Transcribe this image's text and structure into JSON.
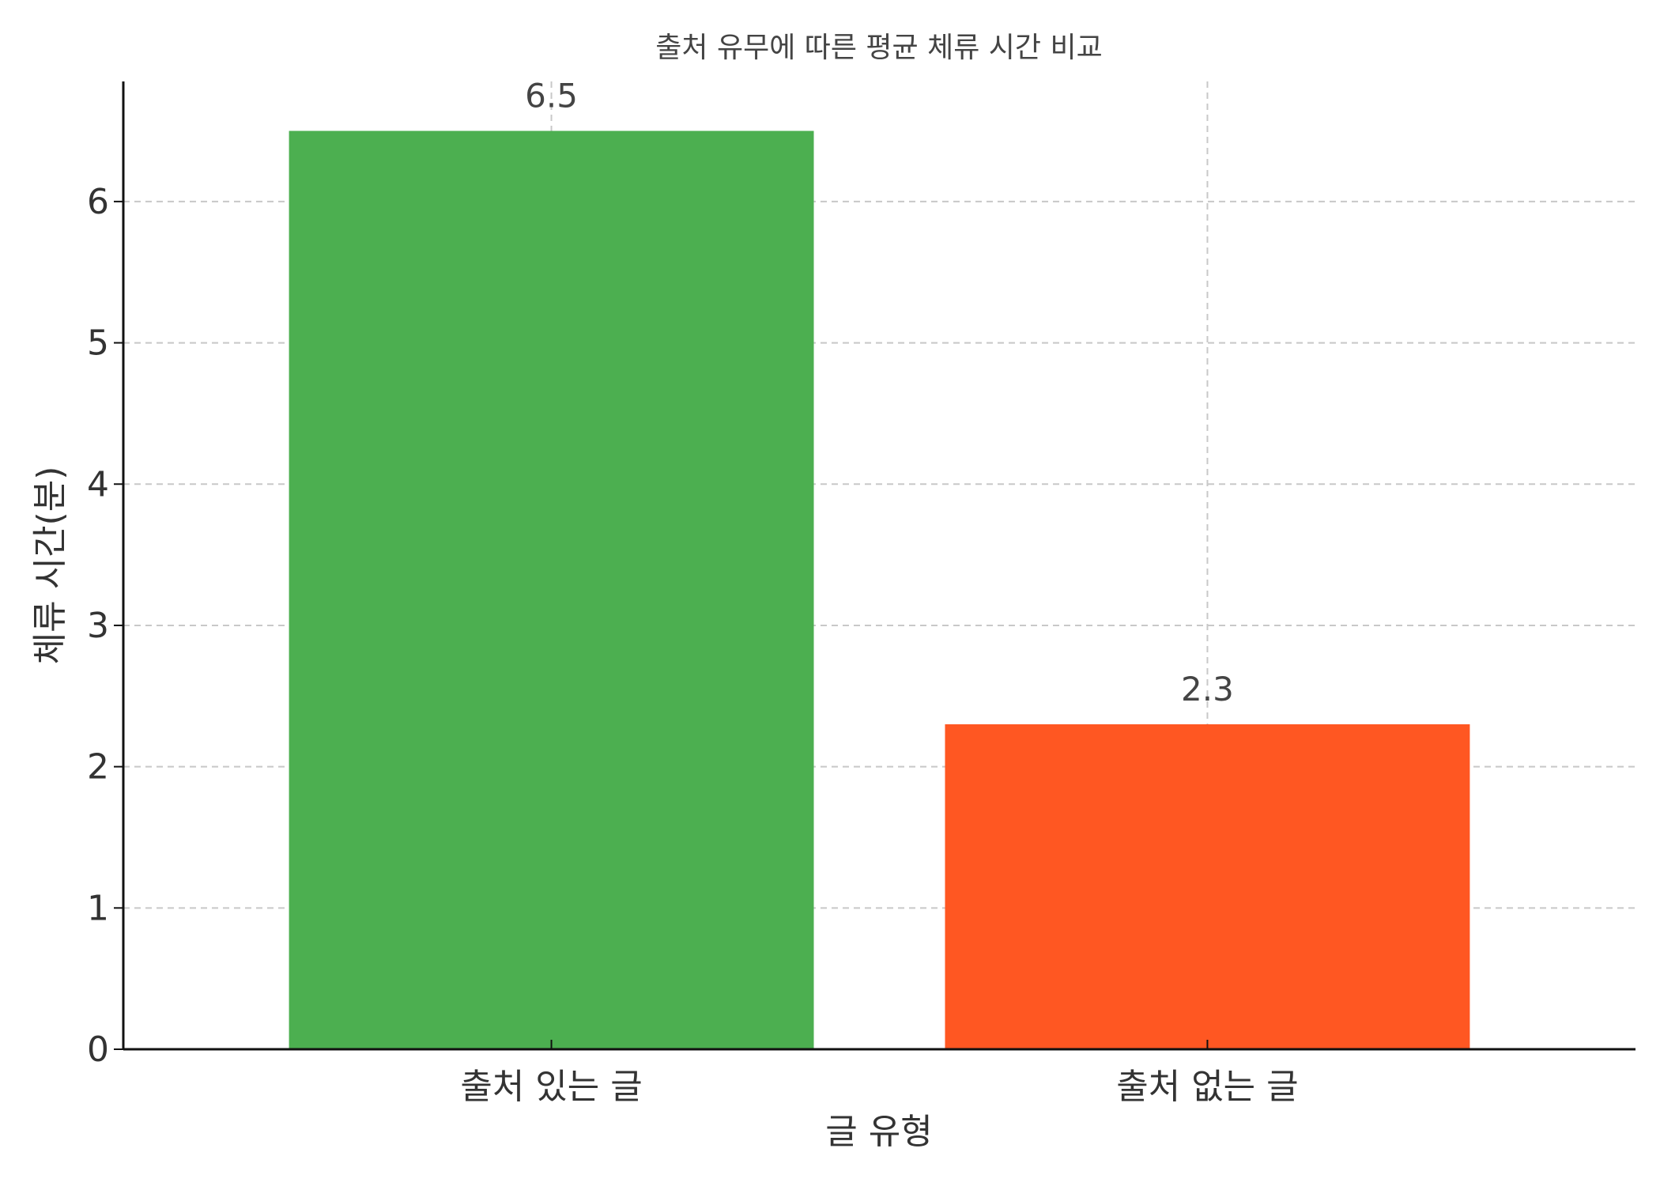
{
  "chart_data": {
    "type": "bar",
    "title": "출처 유무에 따른 평균 체류 시간 비교",
    "xlabel": "글 유형",
    "ylabel": "체류 시간(분)",
    "categories": [
      "출처 있는 글",
      "출처 없는 글"
    ],
    "values": [
      6.5,
      2.3
    ],
    "value_labels": [
      "6.5",
      "2.3"
    ],
    "colors": [
      "#4caf50",
      "#ff5722"
    ],
    "ylim": [
      0,
      6.85
    ],
    "yticks": [
      0,
      1,
      2,
      3,
      4,
      5,
      6
    ],
    "grid": true,
    "grid_style": "dashed"
  }
}
